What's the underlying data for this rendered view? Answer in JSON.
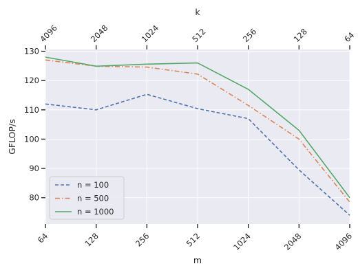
{
  "chart_data": {
    "type": "line",
    "x_top_label": "k",
    "x_bottom_label": "m",
    "ylabel": "GFLOP/s",
    "categories_bottom": [
      "64",
      "128",
      "256",
      "512",
      "1024",
      "2048",
      "4096"
    ],
    "categories_top": [
      "4096",
      "2048",
      "1024",
      "512",
      "256",
      "128",
      "64"
    ],
    "yticks": [
      80,
      90,
      100,
      110,
      120,
      130
    ],
    "ylim": [
      71,
      130.6
    ],
    "grid": true,
    "legend_position": "lower-left",
    "series": [
      {
        "name": "n = 100",
        "color": "#4c72b0",
        "style": "dashed",
        "values": [
          112.0,
          110.0,
          115.3,
          110.4,
          107.0,
          89.5,
          74.0
        ]
      },
      {
        "name": "n = 500",
        "color": "#dd8452",
        "style": "dashdot",
        "values": [
          127.0,
          124.9,
          124.6,
          122.2,
          111.5,
          100.0,
          78.5
        ]
      },
      {
        "name": "n = 1000",
        "color": "#55a868",
        "style": "solid",
        "values": [
          128.0,
          124.9,
          125.6,
          126.0,
          117.0,
          103.0,
          80.0
        ]
      }
    ]
  }
}
